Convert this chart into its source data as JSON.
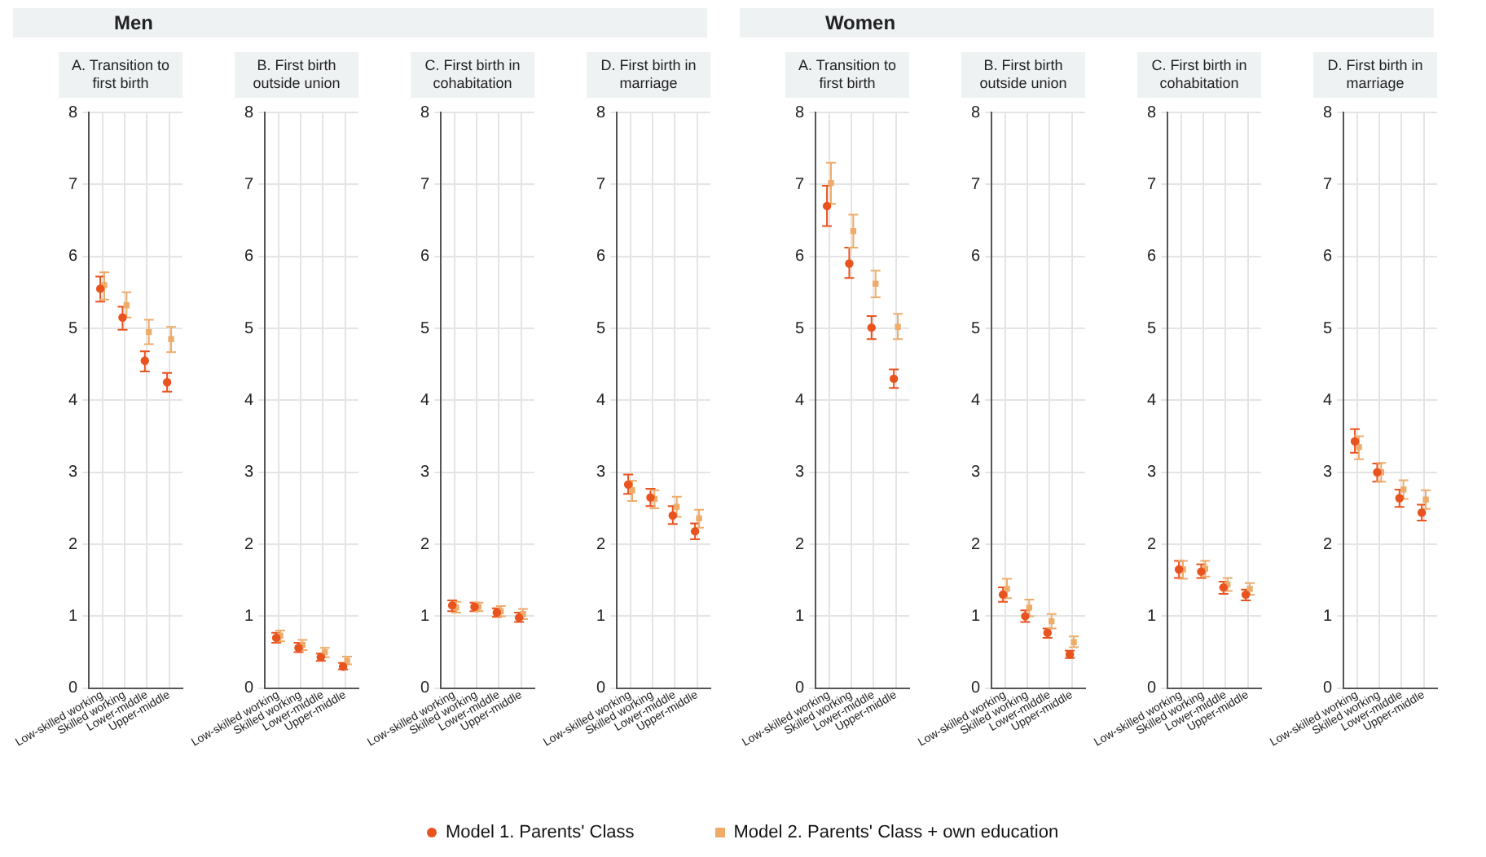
{
  "chart_data": [
    {
      "type": "scatter",
      "subtitle": "Men",
      "title": "A. Transition to first birth",
      "categories": [
        "Low-skilled working",
        "Skilled working",
        "Lower-middle",
        "Upper-middle"
      ],
      "ylim": [
        0,
        8
      ],
      "yticks": [
        0,
        1,
        2,
        3,
        4,
        5,
        6,
        7,
        8
      ],
      "grid": true,
      "legend": "bottom",
      "series": [
        {
          "name": "Model 1. Parents' Class",
          "color": "#e8531f",
          "marker": "circle",
          "values": [
            5.55,
            5.15,
            4.55,
            4.25
          ],
          "errors": [
            [
              5.37,
              5.72
            ],
            [
              4.98,
              5.3
            ],
            [
              4.4,
              4.68
            ],
            [
              4.12,
              4.38
            ]
          ]
        },
        {
          "name": "Model 2. Parents' Class + own education",
          "color": "#eeac6a",
          "marker": "square",
          "values": [
            5.6,
            5.32,
            4.95,
            4.85
          ],
          "errors": [
            [
              5.4,
              5.78
            ],
            [
              5.15,
              5.5
            ],
            [
              4.78,
              5.12
            ],
            [
              4.67,
              5.02
            ]
          ]
        }
      ]
    },
    {
      "type": "scatter",
      "title": "B. First birth outside union",
      "categories": [
        "Low-skilled working",
        "Skilled working",
        "Lower-middle",
        "Upper-middle"
      ],
      "ylim": [
        0,
        8
      ],
      "yticks": [
        0,
        1,
        2,
        3,
        4,
        5,
        6,
        7,
        8
      ],
      "grid": true,
      "legend": "bottom",
      "series": [
        {
          "name": "Model 1. Parents' Class",
          "color": "#e8531f",
          "marker": "circle",
          "values": [
            0.7,
            0.56,
            0.43,
            0.3
          ],
          "errors": [
            [
              0.63,
              0.77
            ],
            [
              0.5,
              0.63
            ],
            [
              0.38,
              0.48
            ],
            [
              0.26,
              0.35
            ]
          ]
        },
        {
          "name": "Model 2. Parents' Class + own education",
          "color": "#eeac6a",
          "marker": "square",
          "values": [
            0.73,
            0.6,
            0.5,
            0.38
          ],
          "errors": [
            [
              0.65,
              0.8
            ],
            [
              0.53,
              0.67
            ],
            [
              0.43,
              0.56
            ],
            [
              0.33,
              0.44
            ]
          ]
        }
      ]
    },
    {
      "type": "scatter",
      "title": "C. First birth in cohabitation",
      "categories": [
        "Low-skilled working",
        "Skilled working",
        "Lower-middle",
        "Upper-middle"
      ],
      "ylim": [
        0,
        8
      ],
      "yticks": [
        0,
        1,
        2,
        3,
        4,
        5,
        6,
        7,
        8
      ],
      "grid": true,
      "legend": "bottom",
      "series": [
        {
          "name": "Model 1. Parents' Class",
          "color": "#e8531f",
          "marker": "circle",
          "values": [
            1.15,
            1.13,
            1.05,
            0.98
          ],
          "errors": [
            [
              1.07,
              1.22
            ],
            [
              1.07,
              1.19
            ],
            [
              0.99,
              1.11
            ],
            [
              0.92,
              1.05
            ]
          ]
        },
        {
          "name": "Model 2. Parents' Class + own education",
          "color": "#eeac6a",
          "marker": "square",
          "values": [
            1.12,
            1.13,
            1.07,
            1.03
          ],
          "errors": [
            [
              1.05,
              1.2
            ],
            [
              1.07,
              1.19
            ],
            [
              1.0,
              1.14
            ],
            [
              0.96,
              1.1
            ]
          ]
        }
      ]
    },
    {
      "type": "scatter",
      "title": "D. First birth in marriage",
      "categories": [
        "Low-skilled working",
        "Skilled working",
        "Lower-middle",
        "Upper-middle"
      ],
      "ylim": [
        0,
        8
      ],
      "yticks": [
        0,
        1,
        2,
        3,
        4,
        5,
        6,
        7,
        8
      ],
      "grid": true,
      "legend": "bottom",
      "series": [
        {
          "name": "Model 1. Parents' Class",
          "color": "#e8531f",
          "marker": "circle",
          "values": [
            2.83,
            2.65,
            2.4,
            2.18
          ],
          "errors": [
            [
              2.7,
              2.97
            ],
            [
              2.53,
              2.77
            ],
            [
              2.28,
              2.53
            ],
            [
              2.07,
              2.29
            ]
          ]
        },
        {
          "name": "Model 2. Parents' Class + own education",
          "color": "#eeac6a",
          "marker": "square",
          "values": [
            2.75,
            2.63,
            2.52,
            2.36
          ],
          "errors": [
            [
              2.6,
              2.88
            ],
            [
              2.5,
              2.75
            ],
            [
              2.38,
              2.66
            ],
            [
              2.23,
              2.48
            ]
          ]
        }
      ]
    },
    {
      "type": "scatter",
      "subtitle": "Women",
      "title": "A. Transition to first birth",
      "categories": [
        "Low-skilled working",
        "Skilled working",
        "Lower-middle",
        "Upper-middle"
      ],
      "ylim": [
        0,
        8
      ],
      "yticks": [
        0,
        1,
        2,
        3,
        4,
        5,
        6,
        7,
        8
      ],
      "grid": true,
      "legend": "bottom",
      "series": [
        {
          "name": "Model 1. Parents' Class",
          "color": "#e8531f",
          "marker": "circle",
          "values": [
            6.7,
            5.9,
            5.01,
            4.3
          ],
          "errors": [
            [
              6.42,
              6.98
            ],
            [
              5.7,
              6.12
            ],
            [
              4.85,
              5.17
            ],
            [
              4.17,
              4.43
            ]
          ]
        },
        {
          "name": "Model 2. Parents' Class + own education",
          "color": "#eeac6a",
          "marker": "square",
          "values": [
            7.02,
            6.35,
            5.62,
            5.02
          ],
          "errors": [
            [
              6.73,
              7.3
            ],
            [
              6.12,
              6.58
            ],
            [
              5.43,
              5.8
            ],
            [
              4.85,
              5.2
            ]
          ]
        }
      ]
    },
    {
      "type": "scatter",
      "title": "B. First birth outside union",
      "categories": [
        "Low-skilled working",
        "Skilled working",
        "Lower-middle",
        "Upper-middle"
      ],
      "ylim": [
        0,
        8
      ],
      "yticks": [
        0,
        1,
        2,
        3,
        4,
        5,
        6,
        7,
        8
      ],
      "grid": true,
      "legend": "bottom",
      "series": [
        {
          "name": "Model 1. Parents' Class",
          "color": "#e8531f",
          "marker": "circle",
          "values": [
            1.3,
            1.0,
            0.77,
            0.47
          ],
          "errors": [
            [
              1.2,
              1.4
            ],
            [
              0.92,
              1.08
            ],
            [
              0.7,
              0.83
            ],
            [
              0.42,
              0.52
            ]
          ]
        },
        {
          "name": "Model 2. Parents' Class + own education",
          "color": "#eeac6a",
          "marker": "square",
          "values": [
            1.38,
            1.12,
            0.93,
            0.64
          ],
          "errors": [
            [
              1.25,
              1.52
            ],
            [
              1.0,
              1.23
            ],
            [
              0.83,
              1.03
            ],
            [
              0.57,
              0.72
            ]
          ]
        }
      ]
    },
    {
      "type": "scatter",
      "title": "C. First birth in cohabitation",
      "categories": [
        "Low-skilled working",
        "Skilled working",
        "Lower-middle",
        "Upper-middle"
      ],
      "ylim": [
        0,
        8
      ],
      "yticks": [
        0,
        1,
        2,
        3,
        4,
        5,
        6,
        7,
        8
      ],
      "grid": true,
      "legend": "bottom",
      "series": [
        {
          "name": "Model 1. Parents' Class",
          "color": "#e8531f",
          "marker": "circle",
          "values": [
            1.65,
            1.62,
            1.4,
            1.3
          ],
          "errors": [
            [
              1.53,
              1.77
            ],
            [
              1.53,
              1.72
            ],
            [
              1.31,
              1.48
            ],
            [
              1.22,
              1.37
            ]
          ]
        },
        {
          "name": "Model 2. Parents' Class + own education",
          "color": "#eeac6a",
          "marker": "square",
          "values": [
            1.65,
            1.66,
            1.44,
            1.38
          ],
          "errors": [
            [
              1.52,
              1.77
            ],
            [
              1.55,
              1.77
            ],
            [
              1.35,
              1.53
            ],
            [
              1.3,
              1.46
            ]
          ]
        }
      ]
    },
    {
      "type": "scatter",
      "title": "D. First birth in marriage",
      "categories": [
        "Low-skilled working",
        "Skilled working",
        "Lower-middle",
        "Upper-middle"
      ],
      "ylim": [
        0,
        8
      ],
      "yticks": [
        0,
        1,
        2,
        3,
        4,
        5,
        6,
        7,
        8
      ],
      "grid": true,
      "legend": "bottom",
      "series": [
        {
          "name": "Model 1. Parents' Class",
          "color": "#e8531f",
          "marker": "circle",
          "values": [
            3.43,
            3.0,
            2.64,
            2.44
          ],
          "errors": [
            [
              3.27,
              3.6
            ],
            [
              2.87,
              3.12
            ],
            [
              2.52,
              2.76
            ],
            [
              2.33,
              2.55
            ]
          ]
        },
        {
          "name": "Model 2. Parents' Class + own education",
          "color": "#eeac6a",
          "marker": "square",
          "values": [
            3.35,
            3.0,
            2.76,
            2.62
          ],
          "errors": [
            [
              3.18,
              3.5
            ],
            [
              2.87,
              3.13
            ],
            [
              2.63,
              2.89
            ],
            [
              2.49,
              2.75
            ]
          ]
        }
      ]
    }
  ]
}
